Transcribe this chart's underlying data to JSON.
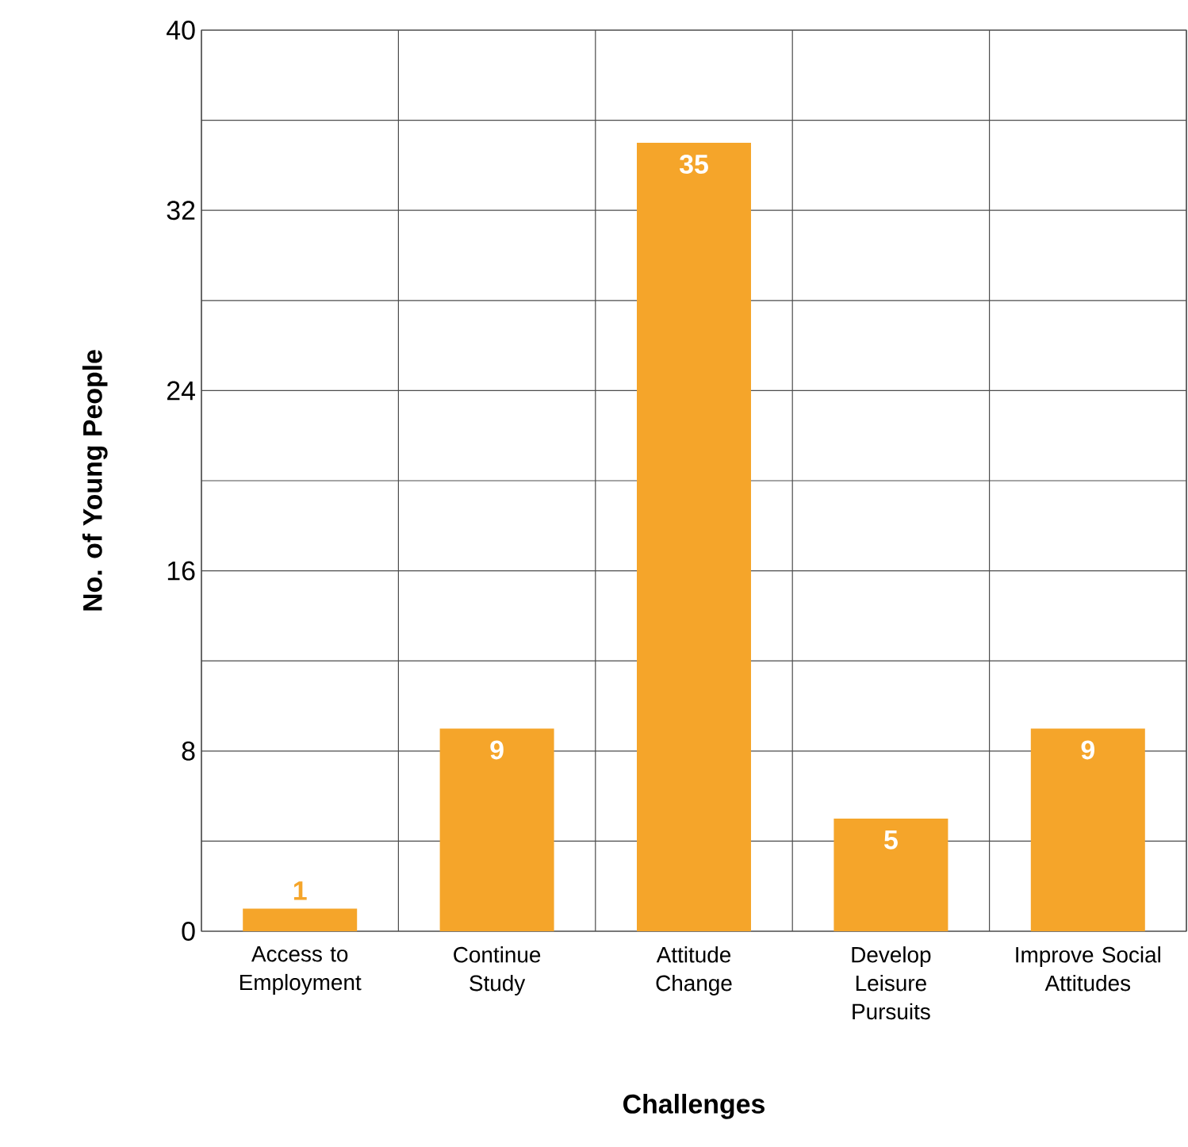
{
  "chart_data": {
    "type": "bar",
    "xlabel": "Challenges",
    "ylabel": "No. of Young People",
    "categories": [
      "Access to Employment",
      "Continue Study",
      "Attitude Change",
      "Develop Leisure Pursuits",
      "Improve Social Attitudes"
    ],
    "values": [
      1,
      9,
      35,
      5,
      9
    ],
    "color": "#f5a52a",
    "data_labels": true,
    "ylim": [
      0,
      40
    ],
    "yticks": [
      0,
      {
        "value": 4,
        "label": null
      },
      8,
      {
        "value": 12,
        "label": null
      },
      16,
      {
        "value": 20,
        "label": null
      },
      24,
      {
        "value": 28,
        "label": null
      },
      32,
      {
        "value": 36,
        "label": null
      },
      40
    ],
    "grid": true
  }
}
